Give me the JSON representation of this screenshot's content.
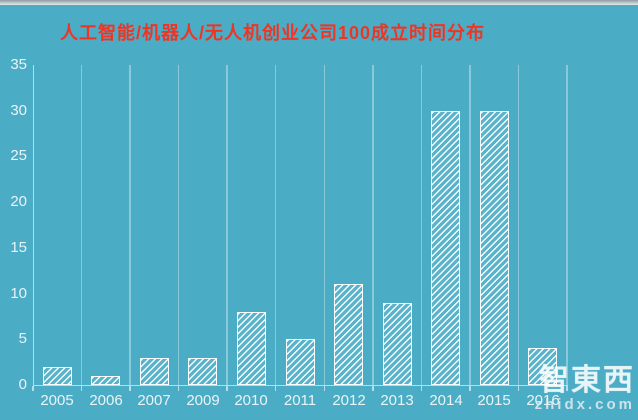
{
  "chart_data": {
    "type": "bar",
    "title": "人工智能/机器人/无人机创业公司100成立时间分布",
    "categories": [
      "2005",
      "2006",
      "2007",
      "2009",
      "2010",
      "2011",
      "2012",
      "2013",
      "2014",
      "2015",
      "2016"
    ],
    "values": [
      2,
      1,
      3,
      3,
      8,
      5,
      11,
      9,
      30,
      30,
      4
    ],
    "xlabel": "",
    "ylabel": "",
    "ylim": [
      0,
      35
    ],
    "yticks": [
      0,
      5,
      10,
      15,
      20,
      25,
      30,
      35
    ],
    "legend_position": "none",
    "grid": "vertical category separators only",
    "bar_fill": "white diagonal hatch, transparent background",
    "colors": {
      "background": "#4bacc6",
      "title": "#ee3524",
      "axis_labels": "#e9f4f6",
      "gridline": "rgba(255,255,255,0.35)",
      "axis_line": "rgba(255,255,255,0.60)",
      "bar_stripe": "#ffffff"
    }
  },
  "watermark": {
    "logo_text": "智東西",
    "site_text": "zhidx.com"
  }
}
